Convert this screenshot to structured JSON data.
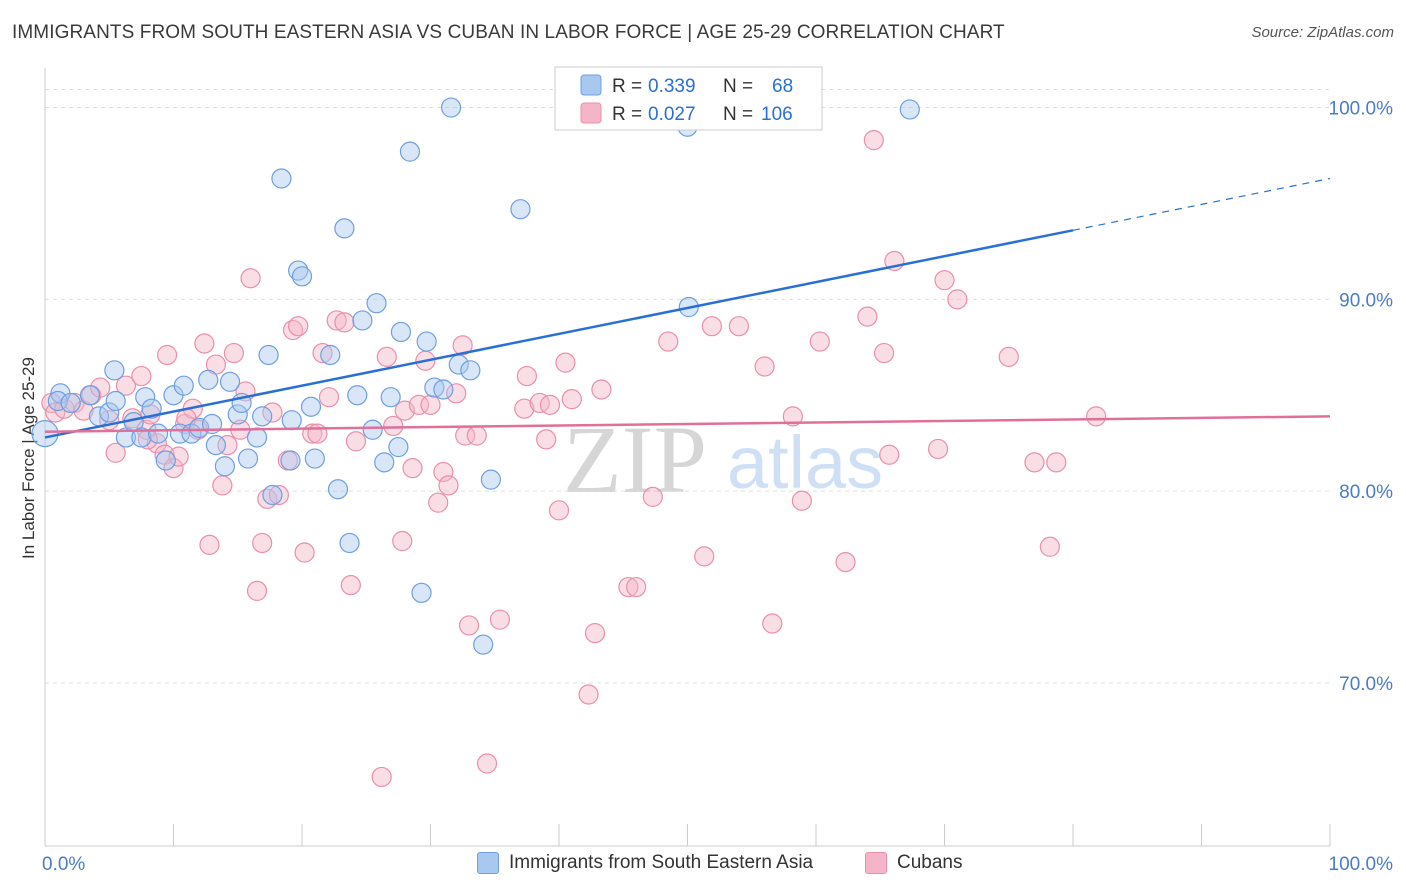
{
  "title": "IMMIGRANTS FROM SOUTH EASTERN ASIA VS CUBAN IN LABOR FORCE | AGE 25-29 CORRELATION CHART",
  "source": "Source: ZipAtlas.com",
  "watermark": {
    "zip": "ZIP",
    "atlas": "atlas"
  },
  "colors": {
    "blue_fill": "#a9c8f0",
    "blue_stroke": "#6f9fe0",
    "blue_line": "#2a6fd6",
    "pink_fill": "#f5b5c8",
    "pink_stroke": "#ea8fab",
    "pink_line": "#e0709a",
    "axis_text": "#4a7cc7",
    "grid": "#dddddd"
  },
  "legend": {
    "rows": [
      {
        "r_label": "R =",
        "r_value": "0.339",
        "n_label": "N =",
        "n_value": "68"
      },
      {
        "r_label": "R =",
        "r_value": "0.027",
        "n_label": "N =",
        "n_value": "106"
      }
    ]
  },
  "chart_data": {
    "type": "scatter",
    "title": "IMMIGRANTS FROM SOUTH EASTERN ASIA VS CUBAN IN LABOR FORCE | AGE 25-29 CORRELATION CHART",
    "xlabel": "",
    "ylabel": "In Labor Force | Age 25-29",
    "xlim": [
      0,
      100
    ],
    "ylim": [
      61.5,
      103.0
    ],
    "x_tick_labels": [
      "0.0%",
      "100.0%"
    ],
    "y_ticks": [
      70,
      80,
      90,
      100
    ],
    "y_tick_labels": [
      "70.0%",
      "80.0%",
      "90.0%",
      "100.0%"
    ],
    "grid": true,
    "legend_position": "top-center",
    "series": [
      {
        "name": "Immigrants from South Eastern Asia",
        "color": "#6f9fe0",
        "trend": {
          "x0": 0,
          "y0": 82.8,
          "x1": 80,
          "y1": 93.6,
          "dash_to_x": 100,
          "dash_to_y": 96.3
        },
        "points": [
          [
            0.0,
            83.0
          ],
          [
            1.2,
            85.1
          ],
          [
            1.0,
            84.7
          ],
          [
            2.0,
            84.6
          ],
          [
            3.5,
            85.0
          ],
          [
            4.2,
            83.9
          ],
          [
            5.0,
            84.1
          ],
          [
            5.5,
            84.7
          ],
          [
            5.4,
            86.3
          ],
          [
            6.3,
            82.8
          ],
          [
            6.9,
            83.6
          ],
          [
            7.5,
            82.8
          ],
          [
            7.8,
            84.9
          ],
          [
            8.3,
            84.3
          ],
          [
            8.8,
            83.0
          ],
          [
            9.4,
            81.6
          ],
          [
            10.0,
            85.0
          ],
          [
            10.5,
            83.0
          ],
          [
            10.8,
            85.5
          ],
          [
            11.4,
            83.0
          ],
          [
            12.0,
            83.3
          ],
          [
            12.7,
            85.8
          ],
          [
            13.0,
            83.5
          ],
          [
            13.3,
            82.4
          ],
          [
            14.0,
            81.3
          ],
          [
            14.4,
            85.7
          ],
          [
            15.0,
            84.0
          ],
          [
            15.3,
            84.6
          ],
          [
            15.8,
            81.7
          ],
          [
            16.5,
            82.8
          ],
          [
            16.9,
            83.9
          ],
          [
            17.4,
            87.1
          ],
          [
            17.7,
            79.8
          ],
          [
            18.4,
            96.3
          ],
          [
            19.1,
            81.6
          ],
          [
            19.2,
            83.7
          ],
          [
            19.7,
            91.5
          ],
          [
            20.0,
            91.2
          ],
          [
            20.7,
            84.4
          ],
          [
            21.0,
            81.7
          ],
          [
            22.2,
            87.1
          ],
          [
            22.8,
            80.1
          ],
          [
            23.3,
            93.7
          ],
          [
            23.7,
            77.3
          ],
          [
            24.3,
            85.0
          ],
          [
            24.7,
            88.9
          ],
          [
            25.5,
            83.2
          ],
          [
            25.8,
            89.8
          ],
          [
            26.4,
            81.5
          ],
          [
            26.9,
            84.9
          ],
          [
            27.5,
            82.3
          ],
          [
            27.7,
            88.3
          ],
          [
            28.4,
            97.7
          ],
          [
            29.3,
            74.7
          ],
          [
            29.7,
            87.8
          ],
          [
            30.3,
            85.4
          ],
          [
            31.0,
            85.3
          ],
          [
            31.6,
            100.0
          ],
          [
            32.2,
            86.6
          ],
          [
            33.1,
            86.3
          ],
          [
            34.1,
            72.0
          ],
          [
            34.7,
            80.6
          ],
          [
            37.0,
            94.7
          ],
          [
            40.5,
            100.0
          ],
          [
            49.5,
            99.8
          ],
          [
            50.0,
            99.0
          ],
          [
            50.1,
            89.6
          ],
          [
            67.3,
            99.9
          ]
        ]
      },
      {
        "name": "Cubans",
        "color": "#ea8fab",
        "trend": {
          "x0": 0,
          "y0": 83.1,
          "x1": 100,
          "y1": 83.9
        },
        "points": [
          [
            0.5,
            84.6
          ],
          [
            0.8,
            84.1
          ],
          [
            1.5,
            84.3
          ],
          [
            2.3,
            84.6
          ],
          [
            3.0,
            84.2
          ],
          [
            3.6,
            85.0
          ],
          [
            4.3,
            85.4
          ],
          [
            5.0,
            83.7
          ],
          [
            5.5,
            82.0
          ],
          [
            6.3,
            85.5
          ],
          [
            6.8,
            83.8
          ],
          [
            7.5,
            86.0
          ],
          [
            7.9,
            83.2
          ],
          [
            8.2,
            84.0
          ],
          [
            8.7,
            82.5
          ],
          [
            9.3,
            81.9
          ],
          [
            9.5,
            87.1
          ],
          [
            10.0,
            81.2
          ],
          [
            10.4,
            81.8
          ],
          [
            10.9,
            83.5
          ],
          [
            11.5,
            84.3
          ],
          [
            11.9,
            83.2
          ],
          [
            12.4,
            87.7
          ],
          [
            12.8,
            77.2
          ],
          [
            13.3,
            86.6
          ],
          [
            13.8,
            80.3
          ],
          [
            14.2,
            82.4
          ],
          [
            14.7,
            87.2
          ],
          [
            15.2,
            83.2
          ],
          [
            15.6,
            85.2
          ],
          [
            16.0,
            91.1
          ],
          [
            16.5,
            74.8
          ],
          [
            16.9,
            77.3
          ],
          [
            17.3,
            79.6
          ],
          [
            17.7,
            84.1
          ],
          [
            18.2,
            79.8
          ],
          [
            18.9,
            81.6
          ],
          [
            19.3,
            88.4
          ],
          [
            19.7,
            88.6
          ],
          [
            20.2,
            76.8
          ],
          [
            20.8,
            83.0
          ],
          [
            21.2,
            83.0
          ],
          [
            21.6,
            87.2
          ],
          [
            22.1,
            84.9
          ],
          [
            22.7,
            88.9
          ],
          [
            23.3,
            88.8
          ],
          [
            23.8,
            75.1
          ],
          [
            24.2,
            82.6
          ],
          [
            26.2,
            65.1
          ],
          [
            26.6,
            87.0
          ],
          [
            27.1,
            83.4
          ],
          [
            27.8,
            77.4
          ],
          [
            28.0,
            84.2
          ],
          [
            28.6,
            81.2
          ],
          [
            29.1,
            84.5
          ],
          [
            29.6,
            86.8
          ],
          [
            30.0,
            84.5
          ],
          [
            30.6,
            79.4
          ],
          [
            31.0,
            81.0
          ],
          [
            31.4,
            80.3
          ],
          [
            32.0,
            85.1
          ],
          [
            32.5,
            87.6
          ],
          [
            32.7,
            82.9
          ],
          [
            33.0,
            73.0
          ],
          [
            33.6,
            82.9
          ],
          [
            34.4,
            65.8
          ],
          [
            35.4,
            73.3
          ],
          [
            37.3,
            84.3
          ],
          [
            37.5,
            86.0
          ],
          [
            38.5,
            84.6
          ],
          [
            39.0,
            82.7
          ],
          [
            39.3,
            84.5
          ],
          [
            40.0,
            79.0
          ],
          [
            40.5,
            86.7
          ],
          [
            41.0,
            84.8
          ],
          [
            42.3,
            69.4
          ],
          [
            42.8,
            72.6
          ],
          [
            43.3,
            85.3
          ],
          [
            45.4,
            75.0
          ],
          [
            46.0,
            75.0
          ],
          [
            47.3,
            79.7
          ],
          [
            48.5,
            87.8
          ],
          [
            51.3,
            76.6
          ],
          [
            51.9,
            88.6
          ],
          [
            54.0,
            88.6
          ],
          [
            56.0,
            86.5
          ],
          [
            56.6,
            73.1
          ],
          [
            58.2,
            83.9
          ],
          [
            58.9,
            79.5
          ],
          [
            60.3,
            87.8
          ],
          [
            62.3,
            76.3
          ],
          [
            64.0,
            89.1
          ],
          [
            64.5,
            98.3
          ],
          [
            65.3,
            87.2
          ],
          [
            65.7,
            81.9
          ],
          [
            66.1,
            92.0
          ],
          [
            69.5,
            82.2
          ],
          [
            70.0,
            91.0
          ],
          [
            71.0,
            90.0
          ],
          [
            75.0,
            87.0
          ],
          [
            77.0,
            81.5
          ],
          [
            78.2,
            77.1
          ],
          [
            78.7,
            81.5
          ],
          [
            81.8,
            83.9
          ],
          [
            8.0,
            82.7
          ],
          [
            11.0,
            83.8
          ]
        ]
      }
    ]
  }
}
